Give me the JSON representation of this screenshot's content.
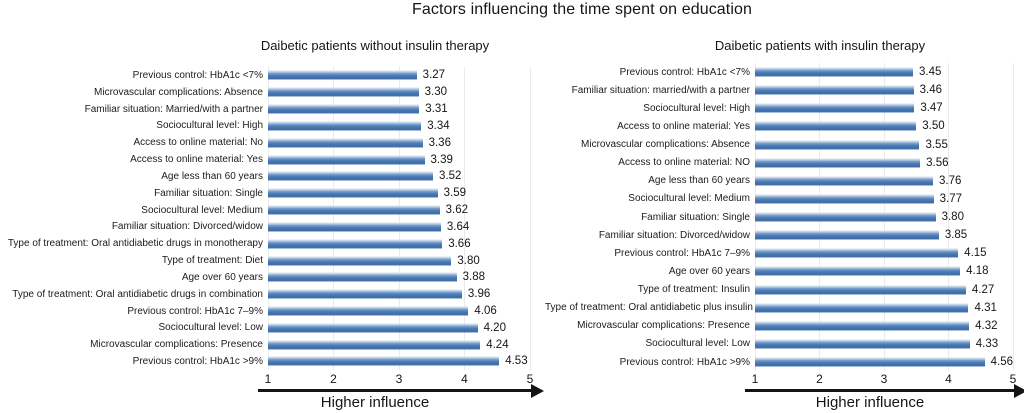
{
  "figure": {
    "title": "Factors influencing the time spent on education"
  },
  "chart_data": [
    {
      "type": "bar",
      "orientation": "horizontal",
      "title": "Daibetic patients without insulin therapy",
      "xlabel": "Higher influence",
      "xlim": [
        1,
        5
      ],
      "x_ticks": [
        1,
        2,
        3,
        4,
        5
      ],
      "grid": "vertical-light",
      "bar_color": "#4f81bd",
      "categories": [
        "Previous control: HbA1c <7%",
        "Microvascular complications: Absence",
        "Familiar situation: Married/with a partner",
        "Sociocultural level: High",
        "Access to online material: No",
        "Access to online material: Yes",
        "Age less than 60 years",
        "Familiar situation: Single",
        "Sociocultural level: Medium",
        "Familiar situation: Divorced/widow",
        "Type of treatment: Oral antidiabetic drugs in monotherapy",
        "Type of treatment: Diet",
        "Age over 60 years",
        "Type of treatment: Oral antidiabetic drugs in combination",
        "Previous control: HbA1c 7–9%",
        "Sociocultural level: Low",
        "Microvascular complications: Presence",
        "Previous control: HbA1c >9%"
      ],
      "values": [
        3.27,
        3.3,
        3.31,
        3.34,
        3.36,
        3.39,
        3.52,
        3.59,
        3.62,
        3.64,
        3.66,
        3.8,
        3.88,
        3.96,
        4.06,
        4.2,
        4.24,
        4.53
      ]
    },
    {
      "type": "bar",
      "orientation": "horizontal",
      "title": "Daibetic patients with insulin therapy",
      "xlabel": "Higher influence",
      "xlim": [
        1,
        5
      ],
      "x_ticks": [
        1,
        2,
        3,
        4,
        5
      ],
      "grid": "vertical-light",
      "bar_color": "#4f81bd",
      "categories": [
        "Previous control: HbA1c <7%",
        "Familiar situation: married/with a partner",
        "Sociocultural level: High",
        "Access to online material: Yes",
        "Microvascular complications: Absence",
        "Access to online material: NO",
        "Age less than 60 years",
        "Sociocultural level: Medium",
        "Familiar situation: Single",
        "Familiar situation: Divorced/widow",
        "Previous control: HbA1c 7–9%",
        "Age over 60 years",
        "Type of treatment: Insulin",
        "Type of treatment: Oral antidiabetic plus insulin",
        "Microvascular complications: Presence",
        "Sociocultural level: Low",
        "Previous control: HbA1c >9%"
      ],
      "values": [
        3.45,
        3.46,
        3.47,
        3.5,
        3.55,
        3.56,
        3.76,
        3.77,
        3.8,
        3.85,
        4.15,
        4.18,
        4.27,
        4.31,
        4.32,
        4.33,
        4.56
      ]
    }
  ]
}
